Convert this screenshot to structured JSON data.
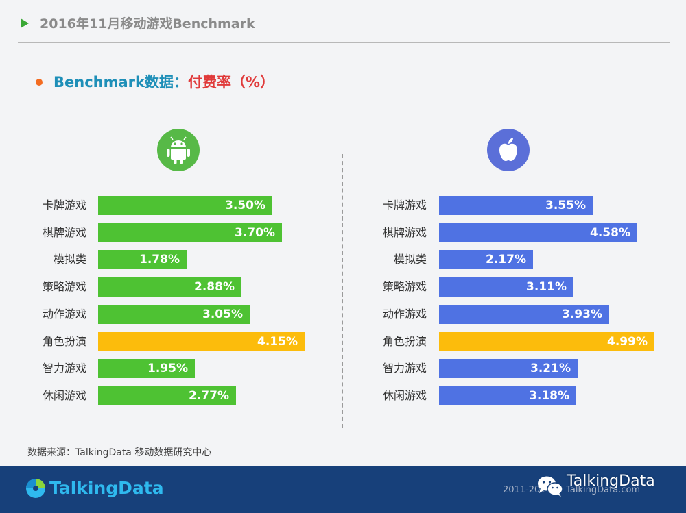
{
  "header": {
    "title": "2016年11月移动游戏Benchmark"
  },
  "subtitle": {
    "part1": "Benchmark数据：",
    "part2": "付费率（%）"
  },
  "icons": {
    "android": "android-icon",
    "apple": "apple-icon"
  },
  "colors": {
    "android_bar": "#4ec233",
    "ios_bar": "#4f72e3",
    "highlight_bar": "#fcbc0c"
  },
  "chart_data": [
    {
      "type": "bar",
      "orientation": "horizontal",
      "platform_icon": "android-icon",
      "categories": [
        "卡牌游戏",
        "棋牌游戏",
        "模拟类",
        "策略游戏",
        "动作游戏",
        "角色扮演",
        "智力游戏",
        "休闲游戏"
      ],
      "values": [
        3.5,
        3.7,
        1.78,
        2.88,
        3.05,
        4.15,
        1.95,
        2.77
      ],
      "labels": [
        "3.50%",
        "3.70%",
        "1.78%",
        "2.88%",
        "3.05%",
        "4.15%",
        "1.95%",
        "2.77%"
      ],
      "highlight_index": 5,
      "xlim": [
        0,
        5
      ]
    },
    {
      "type": "bar",
      "orientation": "horizontal",
      "platform_icon": "apple-icon",
      "categories": [
        "卡牌游戏",
        "棋牌游戏",
        "模拟类",
        "策略游戏",
        "动作游戏",
        "角色扮演",
        "智力游戏",
        "休闲游戏"
      ],
      "values": [
        3.55,
        4.58,
        2.17,
        3.11,
        3.93,
        4.99,
        3.21,
        3.18
      ],
      "labels": [
        "3.55%",
        "4.58%",
        "2.17%",
        "3.11%",
        "3.93%",
        "4.99%",
        "3.21%",
        "3.18%"
      ],
      "highlight_index": 5,
      "xlim": [
        0,
        5
      ]
    }
  ],
  "source": "数据来源：TalkingData 移动数据研究中心",
  "footer": {
    "brand": "TalkingData",
    "copyright": "2011-2016 © TalkingData.com",
    "wechat_name": "TalkingData"
  }
}
